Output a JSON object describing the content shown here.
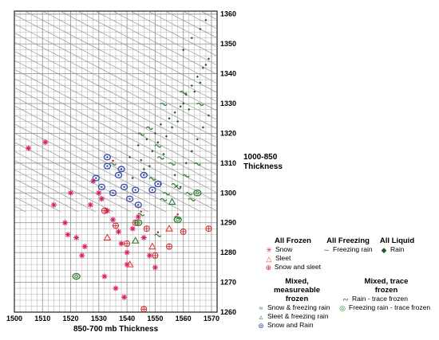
{
  "chart_data": {
    "type": "scatter",
    "title": "",
    "xlabel": "850-700 mb Thickness",
    "ylabel": "1000-850 Thickness",
    "xlim": [
      1500,
      1572
    ],
    "ylim": [
      1260,
      1361
    ],
    "x_ticks": [
      1500,
      1510,
      1520,
      1530,
      1540,
      1550,
      1560,
      1570
    ],
    "y_ticks": [
      1260,
      1270,
      1280,
      1290,
      1300,
      1310,
      1320,
      1330,
      1340,
      1350,
      1360
    ],
    "grid": true,
    "legend_position": "bottom-right",
    "series": [
      {
        "name": "Snow",
        "color": "#d81b60",
        "marker": "star",
        "x": [
          1505,
          1511,
          1514,
          1518,
          1520,
          1522,
          1525,
          1527,
          1528,
          1530,
          1531,
          1533,
          1535,
          1537,
          1538,
          1540,
          1540,
          1542,
          1544,
          1546,
          1548,
          1550,
          1532,
          1536,
          1539,
          1524,
          1519
        ],
        "y": [
          1315,
          1317,
          1296,
          1290,
          1300,
          1285,
          1282,
          1296,
          1304,
          1300,
          1298,
          1294,
          1291,
          1287,
          1283,
          1280,
          1276,
          1288,
          1292,
          1285,
          1279,
          1275,
          1272,
          1268,
          1265,
          1279,
          1286
        ]
      },
      {
        "name": "Sleet",
        "color": "#e53935",
        "marker": "triangle",
        "x": [
          1533,
          1541,
          1549,
          1555
        ],
        "y": [
          1285,
          1276,
          1282,
          1288
        ]
      },
      {
        "name": "Snow and sleet",
        "color": "#c62828",
        "marker": "circle-plus",
        "x": [
          1532,
          1536,
          1540,
          1543,
          1547,
          1550,
          1560,
          1569,
          1555,
          1546
        ],
        "y": [
          1294,
          1289,
          1283,
          1290,
          1288,
          1279,
          1287,
          1288,
          1282,
          1261
        ]
      },
      {
        "name": "Freezing rain",
        "color": "#2e7d32",
        "marker": "tilde",
        "x": [
          1549,
          1552,
          1554,
          1556,
          1558,
          1561,
          1563,
          1565,
          1548,
          1551,
          1545,
          1553,
          1560,
          1566
        ],
        "y": [
          1305,
          1312,
          1300,
          1310,
          1302,
          1306,
          1298,
          1310,
          1322,
          1316,
          1320,
          1330,
          1334,
          1330
        ]
      },
      {
        "name": "Rain",
        "color": "#1b5e20",
        "marker": "diamond",
        "x": [
          1541,
          1544,
          1547,
          1550,
          1552,
          1555,
          1557,
          1559,
          1561,
          1563,
          1565,
          1567,
          1569,
          1546,
          1549,
          1551,
          1554,
          1556,
          1558,
          1560,
          1562,
          1564,
          1566,
          1568,
          1552,
          1557,
          1561,
          1563,
          1565,
          1567,
          1569,
          1560,
          1563,
          1566,
          1568,
          1542,
          1545,
          1548,
          1553,
          1559
        ],
        "y": [
          1312,
          1316,
          1318,
          1320,
          1323,
          1325,
          1327,
          1329,
          1333,
          1336,
          1339,
          1342,
          1345,
          1308,
          1314,
          1317,
          1319,
          1322,
          1324,
          1330,
          1328,
          1334,
          1337,
          1343,
          1303,
          1306,
          1310,
          1314,
          1318,
          1322,
          1326,
          1348,
          1352,
          1355,
          1358,
          1305,
          1311,
          1309,
          1313,
          1302
        ]
      },
      {
        "name": "Snow & freezing rain",
        "color": "#2e7d32",
        "marker": "tilde-red",
        "x": [
          1535,
          1545,
          1551,
          1558
        ],
        "y": [
          1310,
          1293,
          1286,
          1292
        ]
      },
      {
        "name": "Sleet & freezing rain",
        "color": "#2e7d32",
        "marker": "triangle-green",
        "x": [
          1543,
          1556
        ],
        "y": [
          1284,
          1297
        ]
      },
      {
        "name": "Snow and Rain",
        "color": "#3949ab",
        "marker": "circle-blue",
        "x": [
          1529,
          1531,
          1533,
          1535,
          1537,
          1539,
          1541,
          1543,
          1546,
          1549,
          1551,
          1533,
          1538,
          1544
        ],
        "y": [
          1305,
          1302,
          1309,
          1300,
          1306,
          1302,
          1298,
          1301,
          1306,
          1301,
          1303,
          1312,
          1308,
          1296
        ]
      },
      {
        "name": "Rain - trace frozen",
        "color": "#2e7d32",
        "marker": "tilde-green",
        "x": [
          1553,
          1557,
          1562
        ],
        "y": [
          1298,
          1303,
          1300
        ]
      },
      {
        "name": "Freezing rain - trace frozen",
        "color": "#2e7d32",
        "marker": "circle-green",
        "x": [
          1522,
          1544,
          1558,
          1565
        ],
        "y": [
          1272,
          1290,
          1291,
          1300
        ]
      }
    ]
  },
  "legend": {
    "all_frozen": "All Frozen",
    "all_freezing": "All Freezing",
    "all_liquid": "All Liquid",
    "mixed_measureable": "Mixed, measureable frozen",
    "mixed_trace": "Mixed, trace frozen",
    "snow": "Snow",
    "sleet": "Sleet",
    "snow_sleet": "Snow and sleet",
    "freezing_rain": "Freezing rain",
    "rain": "Rain",
    "snow_fr": "Snow & freezing rain",
    "sleet_fr": "Sleet & freezing rain",
    "snow_rain": "Snow and Rain",
    "rain_trace": "Rain - trace frozen",
    "fr_trace": "Freezing rain - trace frozen"
  },
  "colors": {
    "grid": "#9a9a9a",
    "frame": "#222222"
  }
}
